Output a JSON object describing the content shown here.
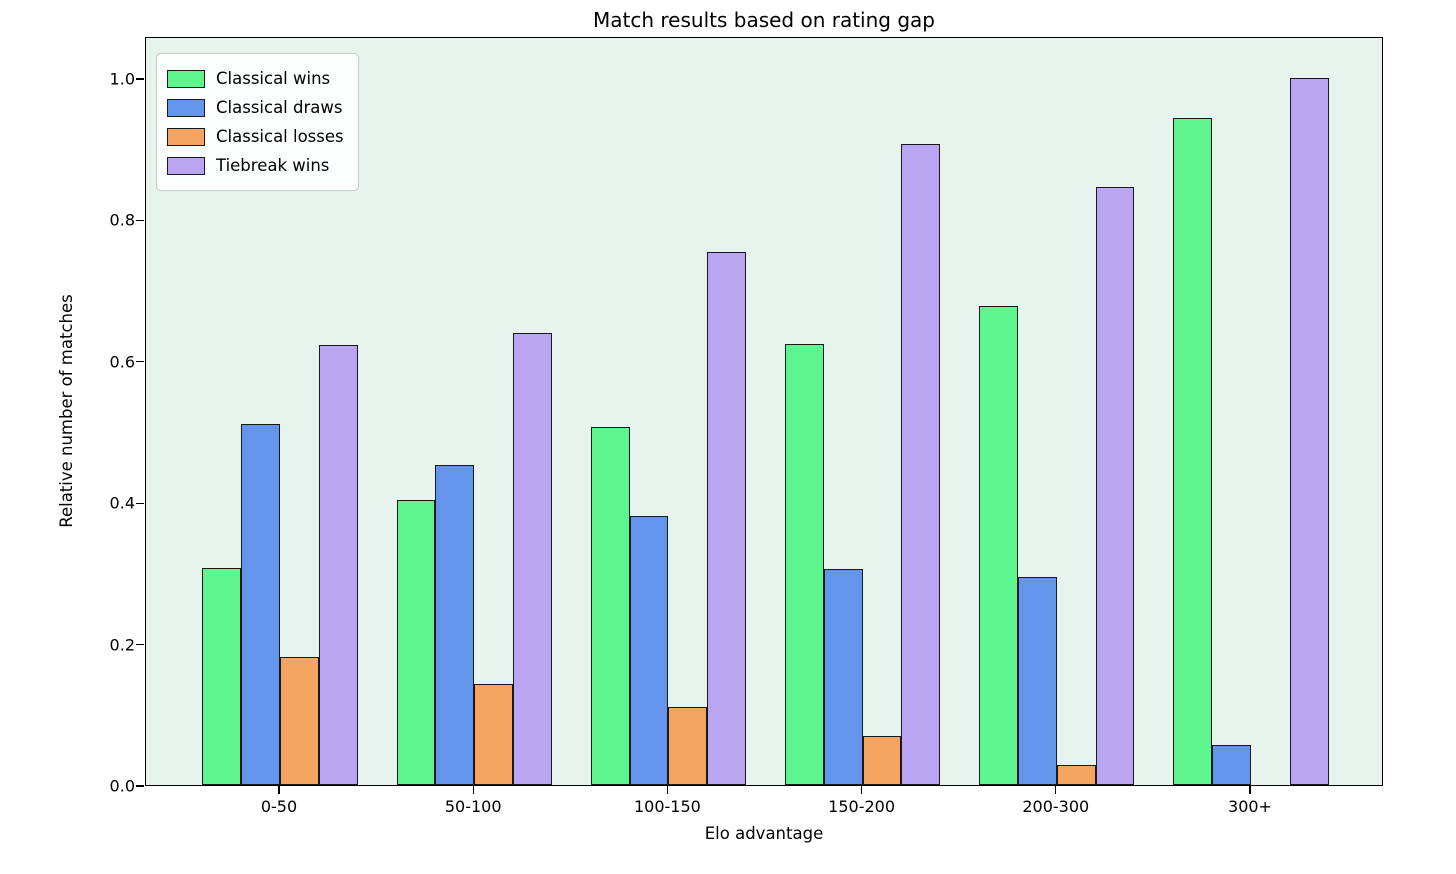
{
  "title": "Match results based on rating gap",
  "chart_data": {
    "type": "bar",
    "title": "Match results based on rating gap",
    "xlabel": "Elo advantage",
    "ylabel": "Relative number of matches",
    "categories": [
      "0-50",
      "50-100",
      "100-150",
      "150-200",
      "200-300",
      "300+"
    ],
    "series": [
      {
        "name": "Classical wins",
        "color": "#5cf58e",
        "values": [
          0.307,
          0.403,
          0.507,
          0.624,
          0.677,
          0.943
        ]
      },
      {
        "name": "Classical draws",
        "color": "#6495ed",
        "values": [
          0.511,
          0.453,
          0.381,
          0.306,
          0.294,
          0.056
        ]
      },
      {
        "name": "Classical losses",
        "color": "#f4a460",
        "values": [
          0.181,
          0.143,
          0.11,
          0.069,
          0.028,
          0.0
        ]
      },
      {
        "name": "Tiebreak wins",
        "color": "#b9a5f2",
        "values": [
          0.622,
          0.639,
          0.754,
          0.907,
          0.846,
          1.0
        ]
      }
    ],
    "ylim": [
      0.0,
      1.059
    ],
    "yticks": [
      0.0,
      0.2,
      0.4,
      0.6,
      0.8,
      1.0
    ],
    "ytick_labels": [
      "0.0",
      "0.2",
      "0.4",
      "0.6",
      "0.8",
      "1.0"
    ],
    "legend_position": "upper left",
    "grid": false,
    "plot_background": "#e7f4ee",
    "bar_edge_color": "#18181f"
  }
}
